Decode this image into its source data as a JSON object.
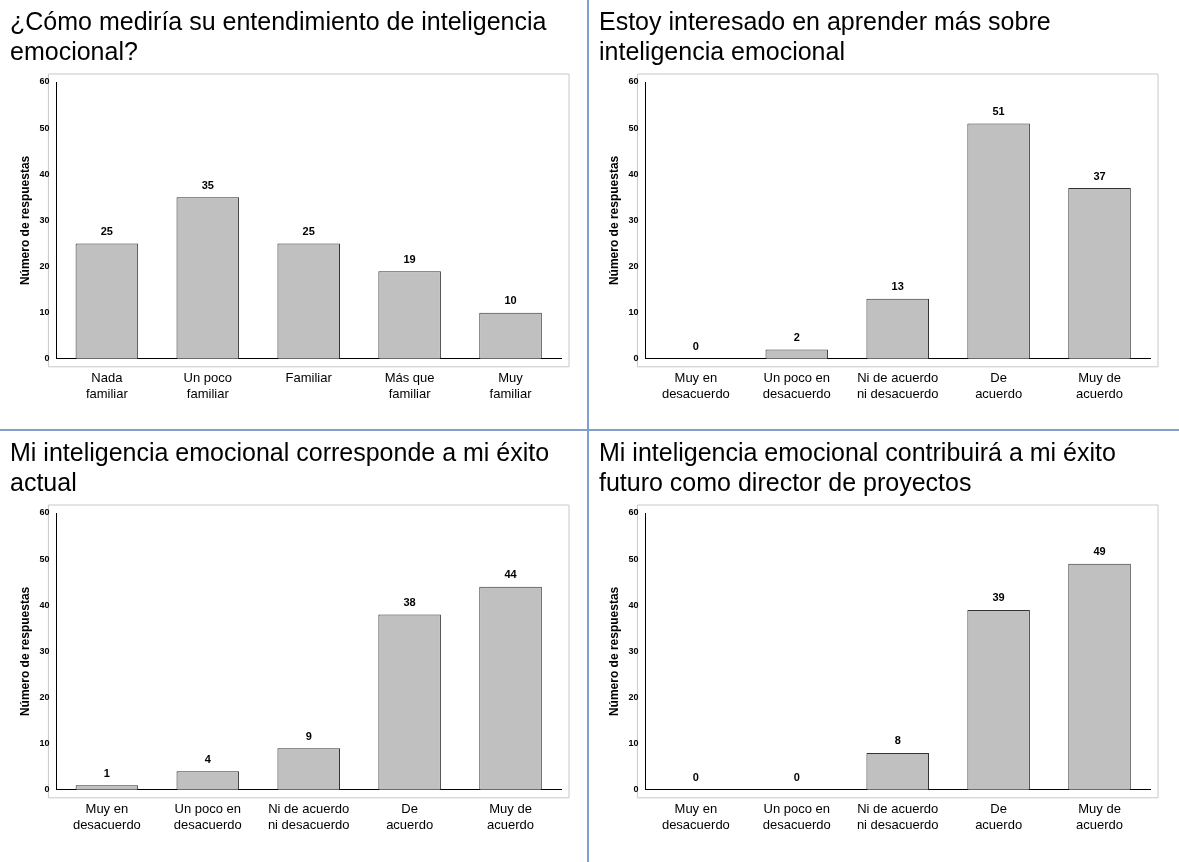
{
  "chart_data": [
    {
      "type": "bar",
      "title": "¿Cómo mediría su entendimiento de inteligencia emocional?",
      "ylabel": "Número de respuestas",
      "categories": [
        "Nada familiar",
        "Un poco familiar",
        "Familiar",
        "Más que familiar",
        "Muy familiar"
      ],
      "values": [
        25,
        35,
        25,
        19,
        10
      ],
      "color": "#c0c0c0",
      "ylim": [
        0,
        60
      ],
      "yticks": [
        0,
        10,
        20,
        30,
        40,
        50,
        60
      ],
      "data_labels": true
    },
    {
      "type": "bar",
      "title": "Estoy interesado en aprender más sobre inteligencia emocional",
      "ylabel": "Número de respuestas",
      "categories": [
        "Muy en desacuerdo",
        "Un poco en desacuerdo",
        "Ni de acuerdo ni desacuerdo",
        "De acuerdo",
        "Muy de acuerdo"
      ],
      "values": [
        0,
        2,
        13,
        51,
        37
      ],
      "color": "#c0c0c0",
      "ylim": [
        0,
        60
      ],
      "yticks": [
        0,
        10,
        20,
        30,
        40,
        50,
        60
      ],
      "data_labels": true
    },
    {
      "type": "bar",
      "title": "Mi inteligencia emocional corresponde a mi éxito actual",
      "ylabel": "Número de respuestas",
      "categories": [
        "Muy en desacuerdo",
        "Un poco en desacuerdo",
        "Ni de acuerdo ni desacuerdo",
        "De acuerdo",
        "Muy de acuerdo"
      ],
      "values": [
        1,
        4,
        9,
        38,
        44
      ],
      "color": "#c0c0c0",
      "ylim": [
        0,
        60
      ],
      "yticks": [
        0,
        10,
        20,
        30,
        40,
        50,
        60
      ],
      "data_labels": true
    },
    {
      "type": "bar",
      "title": "Mi  inteligencia emocional contribuirá a mi éxito futuro como director de proyectos",
      "ylabel": "Número de respuestas",
      "categories": [
        "Muy en desacuerdo",
        "Un poco en desacuerdo",
        "Ni de acuerdo ni desacuerdo",
        "De acuerdo",
        "Muy de acuerdo"
      ],
      "values": [
        0,
        0,
        8,
        39,
        49
      ],
      "color": "#c0c0c0",
      "ylim": [
        0,
        60
      ],
      "yticks": [
        0,
        10,
        20,
        30,
        40,
        50,
        60
      ],
      "data_labels": true
    }
  ]
}
